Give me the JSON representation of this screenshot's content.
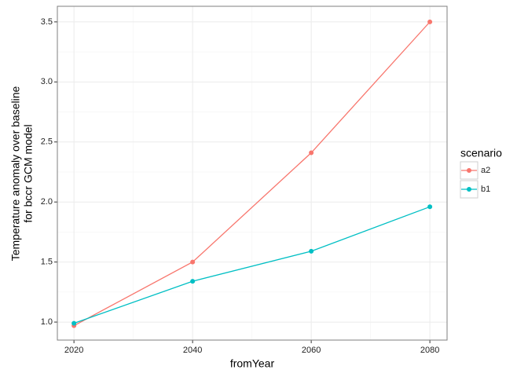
{
  "chart_data": {
    "type": "line",
    "x": [
      2020,
      2040,
      2060,
      2080
    ],
    "series": [
      {
        "name": "a2",
        "color": "#F8766D",
        "values": [
          0.97,
          1.5,
          2.41,
          3.5
        ]
      },
      {
        "name": "b1",
        "color": "#00BFC4",
        "values": [
          0.99,
          1.34,
          1.59,
          1.96
        ]
      }
    ],
    "xlabel": "fromYear",
    "ylabel": [
      "Temperature anomaly over baseline",
      "for bccr GCM model"
    ],
    "legend_title": "scenario",
    "legend": "right",
    "xlim": [
      2017.2,
      2082.9
    ],
    "xticks": [
      2020,
      2040,
      2060,
      2080
    ],
    "ylim": [
      0.85,
      3.63
    ],
    "yticks": [
      {
        "value": 1,
        "label": "1.0"
      },
      1.5,
      {
        "value": 2,
        "label": "2.0"
      },
      2.5,
      {
        "value": 3,
        "label": "3.0"
      },
      3.5
    ],
    "grid": true
  }
}
